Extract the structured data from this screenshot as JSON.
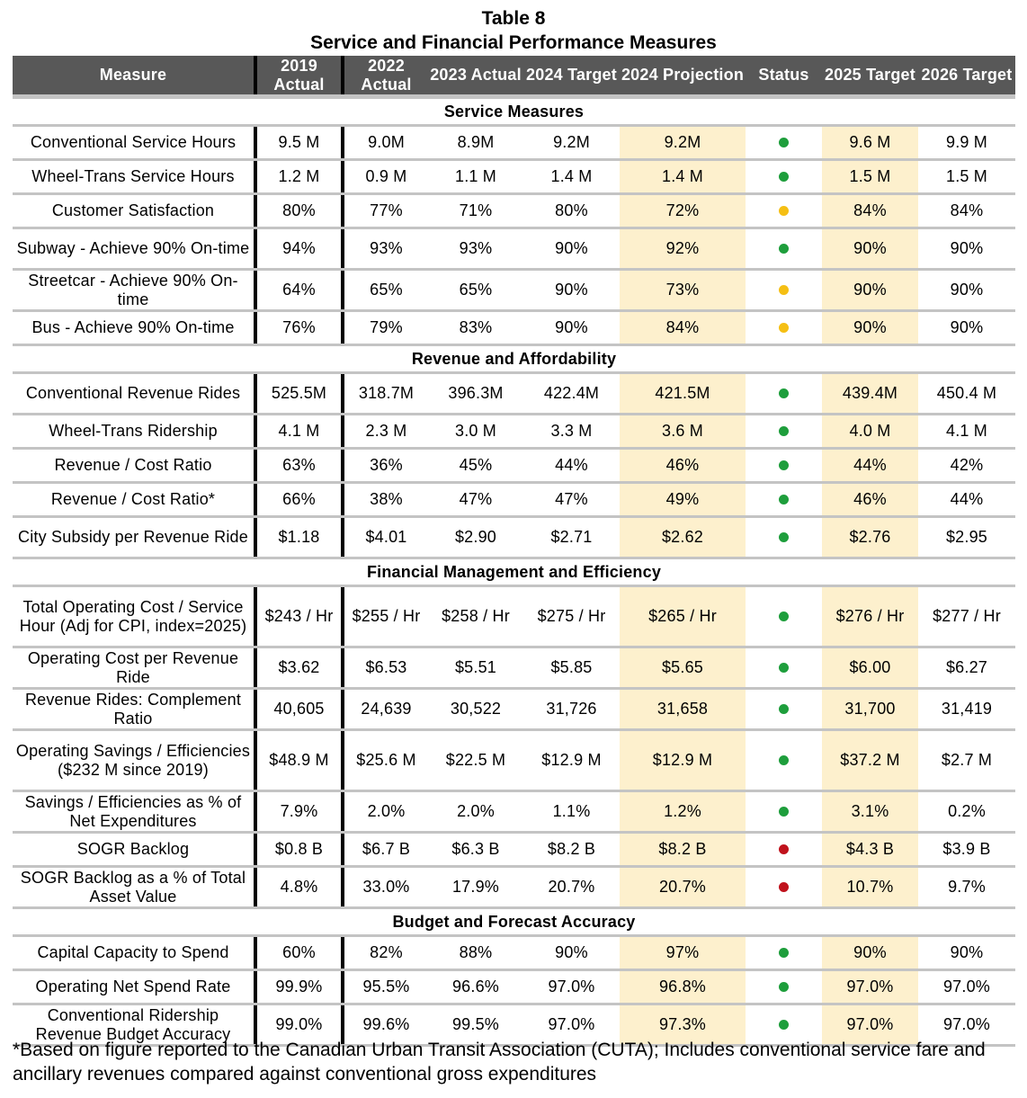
{
  "title": "Table 8",
  "subtitle": "Service and Financial Performance Measures",
  "headers": [
    "Measure",
    "2019 Actual",
    "2022 Actual",
    "2023 Actual",
    "2024 Target",
    "2024 Projection",
    "Status",
    "2025 Target",
    "2026 Target"
  ],
  "status_colors": {
    "green": "#1e9e3c",
    "yellow": "#f5bf14",
    "red": "#c0121c"
  },
  "highlight_color": "#fdf0cd",
  "sections": [
    {
      "name": "Service Measures",
      "rows": [
        {
          "measure": "Conventional Service Hours",
          "values": [
            "9.5 M",
            "9.0M",
            "8.9M",
            "9.2M",
            "9.2M"
          ],
          "status": "green",
          "targets": [
            "9.6 M",
            "9.9 M"
          ]
        },
        {
          "measure": "Wheel-Trans Service Hours",
          "values": [
            "1.2 M",
            "0.9 M",
            "1.1 M",
            "1.4 M",
            "1.4 M"
          ],
          "status": "green",
          "targets": [
            "1.5 M",
            "1.5 M"
          ]
        },
        {
          "measure": "Customer Satisfaction",
          "values": [
            "80%",
            "77%",
            "71%",
            "80%",
            "72%"
          ],
          "status": "yellow",
          "targets": [
            "84%",
            "84%"
          ]
        },
        {
          "measure": "Subway - Achieve 90% On-time",
          "values": [
            "94%",
            "93%",
            "93%",
            "90%",
            "92%"
          ],
          "status": "green",
          "targets": [
            "90%",
            "90%"
          ]
        },
        {
          "measure": "Streetcar - Achieve 90% On-time",
          "values": [
            "64%",
            "65%",
            "65%",
            "90%",
            "73%"
          ],
          "status": "yellow",
          "targets": [
            "90%",
            "90%"
          ]
        },
        {
          "measure": "Bus - Achieve 90% On-time",
          "values": [
            "76%",
            "79%",
            "83%",
            "90%",
            "84%"
          ],
          "status": "yellow",
          "targets": [
            "90%",
            "90%"
          ]
        }
      ]
    },
    {
      "name": "Revenue and Affordability",
      "rows": [
        {
          "measure": "Conventional Revenue Rides",
          "values": [
            "525.5M",
            "318.7M",
            "396.3M",
            "422.4M",
            "421.5M"
          ],
          "status": "green",
          "targets": [
            "439.4M",
            "450.4 M"
          ]
        },
        {
          "measure": "Wheel-Trans Ridership",
          "values": [
            "4.1 M",
            "2.3 M",
            "3.0 M",
            "3.3 M",
            "3.6 M"
          ],
          "status": "green",
          "targets": [
            "4.0 M",
            "4.1 M"
          ]
        },
        {
          "measure": "Revenue / Cost Ratio",
          "values": [
            "63%",
            "36%",
            "45%",
            "44%",
            "46%"
          ],
          "status": "green",
          "targets": [
            "44%",
            "42%"
          ]
        },
        {
          "measure": "Revenue / Cost Ratio*",
          "values": [
            "66%",
            "38%",
            "47%",
            "47%",
            "49%"
          ],
          "status": "green",
          "targets": [
            "46%",
            "44%"
          ]
        },
        {
          "measure": "City Subsidy per Revenue Ride",
          "values": [
            "$1.18",
            "$4.01",
            "$2.90",
            "$2.71",
            "$2.62"
          ],
          "status": "green",
          "targets": [
            "$2.76",
            "$2.95"
          ]
        }
      ]
    },
    {
      "name": "Financial Management and Efficiency",
      "rows": [
        {
          "measure": "Total Operating Cost / Service Hour (Adj for CPI, index=2025)",
          "values": [
            "$243 / Hr",
            "$255 / Hr",
            "$258 / Hr",
            "$275 / Hr",
            "$265 / Hr"
          ],
          "status": "green",
          "targets": [
            "$276 / Hr",
            "$277 / Hr"
          ]
        },
        {
          "measure": "Operating Cost per Revenue Ride",
          "values": [
            "$3.62",
            "$6.53",
            "$5.51",
            "$5.85",
            "$5.65"
          ],
          "status": "green",
          "targets": [
            "$6.00",
            "$6.27"
          ]
        },
        {
          "measure": "Revenue Rides: Complement Ratio",
          "values": [
            "40,605",
            "24,639",
            "30,522",
            "31,726",
            "31,658"
          ],
          "status": "green",
          "targets": [
            "31,700",
            "31,419"
          ]
        },
        {
          "measure": "Operating Savings / Efficiencies ($232 M since 2019)",
          "values": [
            "$48.9 M",
            "$25.6 M",
            "$22.5 M",
            "$12.9 M",
            "$12.9 M"
          ],
          "status": "green",
          "targets": [
            "$37.2 M",
            "$2.7 M"
          ]
        },
        {
          "measure": "Savings / Efficiencies as % of Net Expenditures",
          "values": [
            "7.9%",
            "2.0%",
            "2.0%",
            "1.1%",
            "1.2%"
          ],
          "status": "green",
          "targets": [
            "3.1%",
            "0.2%"
          ]
        },
        {
          "measure": "SOGR Backlog",
          "values": [
            "$0.8 B",
            "$6.7 B",
            "$6.3 B",
            "$8.2 B",
            "$8.2 B"
          ],
          "status": "red",
          "targets": [
            "$4.3 B",
            "$3.9 B"
          ]
        },
        {
          "measure": "SOGR Backlog as a % of Total Asset Value",
          "values": [
            "4.8%",
            "33.0%",
            "17.9%",
            "20.7%",
            "20.7%"
          ],
          "status": "red",
          "targets": [
            "10.7%",
            "9.7%"
          ]
        }
      ]
    },
    {
      "name": "Budget and Forecast Accuracy",
      "rows": [
        {
          "measure": "Capital Capacity to Spend",
          "values": [
            "60%",
            "82%",
            "88%",
            "90%",
            "97%"
          ],
          "status": "green",
          "targets": [
            "90%",
            "90%"
          ]
        },
        {
          "measure": "Operating Net Spend Rate",
          "values": [
            "99.9%",
            "95.5%",
            "96.6%",
            "97.0%",
            "96.8%"
          ],
          "status": "green",
          "targets": [
            "97.0%",
            "97.0%"
          ]
        },
        {
          "measure": "Conventional Ridership Revenue Budget Accuracy",
          "values": [
            "99.0%",
            "99.6%",
            "99.5%",
            "97.0%",
            "97.3%"
          ],
          "status": "green",
          "targets": [
            "97.0%",
            "97.0%"
          ]
        }
      ]
    }
  ],
  "footnote": "*Based on figure reported to the Canadian Urban Transit Association (CUTA); Includes conventional service fare and ancillary revenues compared against conventional gross expenditures"
}
